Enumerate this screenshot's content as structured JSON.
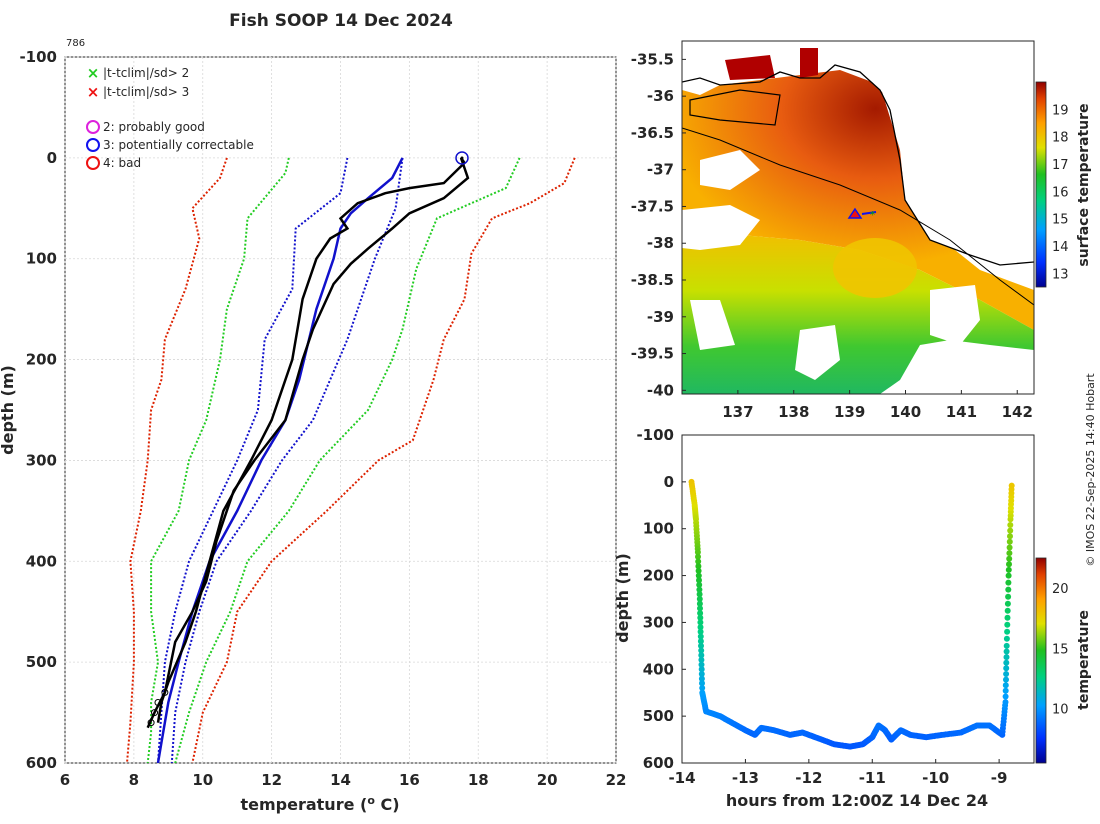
{
  "title": "Fish SOOP 14 Dec 2024",
  "profile_id": "786",
  "credit": "© IMOS 22-Sep-2025 14:40 Hobart",
  "chart_data": [
    {
      "type": "line",
      "name": "temperature-profile",
      "xlabel": "temperature (",
      "xlabel_sup": "o",
      "xlabel_tail": " C)",
      "ylabel": "depth (m)",
      "xlim": [
        6,
        22
      ],
      "ylim": [
        -100,
        600
      ],
      "xticks": [
        6,
        8,
        10,
        12,
        14,
        16,
        18,
        20,
        22
      ],
      "yticks": [
        -100,
        0,
        100,
        200,
        300,
        400,
        500,
        600
      ],
      "grid": true,
      "legend": [
        {
          "label": "|t-tclim|/sd> 2",
          "marker": "x",
          "color": "#22cc22"
        },
        {
          "label": "|t-tclim|/sd> 3",
          "marker": "x",
          "color": "#ee1111"
        },
        {
          "label": "2: probably good",
          "marker": "o",
          "color": "#dd22dd"
        },
        {
          "label": "3: potentially correctable",
          "marker": "o",
          "color": "#1111ee"
        },
        {
          "label": "4: bad",
          "marker": "o",
          "color": "#ee1111"
        }
      ],
      "series": [
        {
          "name": "clim-3sd-low",
          "color": "#dd2200",
          "dash": true,
          "points": [
            [
              10.7,
              0
            ],
            [
              10.5,
              20
            ],
            [
              9.7,
              50
            ],
            [
              9.9,
              80
            ],
            [
              9.5,
              130
            ],
            [
              8.9,
              180
            ],
            [
              8.8,
              220
            ],
            [
              8.5,
              250
            ],
            [
              8.4,
              300
            ],
            [
              8.2,
              350
            ],
            [
              7.9,
              400
            ],
            [
              8.0,
              450
            ],
            [
              8.0,
              500
            ],
            [
              7.9,
              560
            ],
            [
              7.8,
              600
            ]
          ]
        },
        {
          "name": "clim-2sd-low",
          "color": "#22cc22",
          "dash": true,
          "points": [
            [
              12.5,
              0
            ],
            [
              12.4,
              15
            ],
            [
              11.3,
              60
            ],
            [
              11.2,
              100
            ],
            [
              10.7,
              150
            ],
            [
              10.5,
              200
            ],
            [
              10.1,
              260
            ],
            [
              9.6,
              300
            ],
            [
              9.3,
              350
            ],
            [
              8.5,
              400
            ],
            [
              8.5,
              450
            ],
            [
              8.7,
              500
            ],
            [
              8.5,
              540
            ],
            [
              8.5,
              570
            ],
            [
              8.4,
              600
            ]
          ]
        },
        {
          "name": "clim-mean-low",
          "color": "#1111cc",
          "dash": true,
          "points": [
            [
              14.2,
              0
            ],
            [
              14.0,
              35
            ],
            [
              12.7,
              70
            ],
            [
              12.6,
              130
            ],
            [
              11.8,
              180
            ],
            [
              11.6,
              250
            ],
            [
              11.0,
              300
            ],
            [
              10.3,
              350
            ],
            [
              9.6,
              400
            ],
            [
              9.2,
              450
            ],
            [
              8.9,
              500
            ],
            [
              8.8,
              550
            ],
            [
              8.7,
              600
            ]
          ]
        },
        {
          "name": "clim-mean-high",
          "color": "#1111cc",
          "dash": true,
          "points": [
            [
              15.8,
              0
            ],
            [
              15.6,
              50
            ],
            [
              15.0,
              100
            ],
            [
              14.2,
              180
            ],
            [
              13.2,
              260
            ],
            [
              12.3,
              300
            ],
            [
              11.4,
              350
            ],
            [
              10.4,
              400
            ],
            [
              9.9,
              450
            ],
            [
              9.5,
              500
            ],
            [
              9.2,
              550
            ],
            [
              9.1,
              600
            ]
          ]
        },
        {
          "name": "clim-2sd-high",
          "color": "#22cc22",
          "dash": true,
          "points": [
            [
              19.2,
              0
            ],
            [
              18.8,
              30
            ],
            [
              17.8,
              45
            ],
            [
              16.8,
              60
            ],
            [
              16.2,
              110
            ],
            [
              15.8,
              170
            ],
            [
              15.5,
              200
            ],
            [
              14.8,
              250
            ],
            [
              13.4,
              300
            ],
            [
              12.5,
              350
            ],
            [
              11.3,
              400
            ],
            [
              10.8,
              450
            ],
            [
              10.1,
              500
            ],
            [
              9.6,
              550
            ],
            [
              9.2,
              600
            ]
          ]
        },
        {
          "name": "clim-3sd-high",
          "color": "#dd2200",
          "dash": true,
          "points": [
            [
              20.8,
              0
            ],
            [
              20.5,
              25
            ],
            [
              19.5,
              45
            ],
            [
              18.4,
              60
            ],
            [
              17.8,
              95
            ],
            [
              17.6,
              140
            ],
            [
              17.0,
              180
            ],
            [
              16.7,
              220
            ],
            [
              16.1,
              280
            ],
            [
              15.1,
              300
            ],
            [
              13.6,
              350
            ],
            [
              12.0,
              400
            ],
            [
              11.0,
              450
            ],
            [
              10.7,
              500
            ],
            [
              10.0,
              550
            ],
            [
              9.7,
              600
            ]
          ]
        },
        {
          "name": "model-mean",
          "color": "#1111cc",
          "dash": false,
          "points": [
            [
              15.8,
              0
            ],
            [
              15.5,
              20
            ],
            [
              14.8,
              40
            ],
            [
              14.3,
              55
            ],
            [
              14.0,
              70
            ],
            [
              13.8,
              100
            ],
            [
              13.3,
              150
            ],
            [
              12.8,
              220
            ],
            [
              12.4,
              260
            ],
            [
              11.7,
              300
            ],
            [
              11.0,
              350
            ],
            [
              10.2,
              400
            ],
            [
              9.7,
              450
            ],
            [
              9.3,
              500
            ],
            [
              9.0,
              540
            ],
            [
              8.8,
              580
            ],
            [
              8.7,
              600
            ]
          ]
        },
        {
          "name": "xbt-profile-a",
          "color": "#000000",
          "dash": false,
          "points": [
            [
              17.5,
              0
            ],
            [
              17.6,
              5
            ],
            [
              17.0,
              25
            ],
            [
              16.0,
              30
            ],
            [
              15.3,
              35
            ],
            [
              14.5,
              45
            ],
            [
              14.0,
              60
            ],
            [
              14.2,
              70
            ],
            [
              13.7,
              80
            ],
            [
              13.3,
              100
            ],
            [
              12.9,
              140
            ],
            [
              12.8,
              160
            ],
            [
              12.6,
              200
            ],
            [
              12.0,
              260
            ],
            [
              11.4,
              300
            ],
            [
              10.6,
              350
            ],
            [
              10.2,
              400
            ],
            [
              9.8,
              450
            ],
            [
              9.5,
              480
            ],
            [
              9.0,
              520
            ],
            [
              8.8,
              540
            ],
            [
              8.7,
              560
            ]
          ]
        },
        {
          "name": "xbt-profile-b",
          "color": "#000000",
          "dash": false,
          "points": [
            [
              17.5,
              0
            ],
            [
              17.7,
              20
            ],
            [
              17.0,
              40
            ],
            [
              16.0,
              55
            ],
            [
              15.5,
              70
            ],
            [
              14.8,
              90
            ],
            [
              14.3,
              105
            ],
            [
              13.8,
              125
            ],
            [
              13.2,
              170
            ],
            [
              12.9,
              200
            ],
            [
              12.4,
              260
            ],
            [
              11.5,
              300
            ],
            [
              10.9,
              330
            ],
            [
              10.4,
              380
            ],
            [
              10.1,
              420
            ],
            [
              9.7,
              450
            ],
            [
              9.2,
              480
            ],
            [
              8.9,
              530
            ],
            [
              8.6,
              550
            ],
            [
              8.4,
              565
            ]
          ]
        }
      ]
    },
    {
      "type": "heatmap",
      "name": "sst-map",
      "colorbar_label": "surface temperature",
      "xlim": [
        136,
        142.3
      ],
      "ylim": [
        -40.05,
        -35.25
      ],
      "xticks": [
        137,
        138,
        139,
        140,
        141,
        142
      ],
      "yticks": [
        -35.5,
        -36,
        -36.5,
        -37,
        -37.5,
        -38,
        -38.5,
        -39,
        -39.5,
        -40
      ],
      "ytick_labels": [
        "-35.5",
        "-36",
        "-36.5",
        "-37",
        "-37.5",
        "-38",
        "-38.5",
        "-39",
        "-39.5",
        "-40"
      ],
      "colorbar_range": [
        12.5,
        20
      ],
      "colorbar_ticks": [
        13,
        14,
        15,
        16,
        17,
        18,
        19
      ],
      "marker_position": [
        139.1,
        -37.55
      ]
    },
    {
      "type": "scatter",
      "name": "depth-time",
      "xlabel": "hours from 12:00Z 14 Dec 24",
      "ylabel": "depth (m)",
      "colorbar_label": "temperature",
      "xlim": [
        -14,
        -8.45
      ],
      "ylim": [
        -100,
        600
      ],
      "xticks": [
        -14,
        -13,
        -12,
        -11,
        -10,
        -9
      ],
      "yticks": [
        -100,
        0,
        100,
        200,
        300,
        400,
        500,
        600
      ],
      "colorbar_range": [
        5.5,
        22.5
      ],
      "colorbar_ticks": [
        10,
        15,
        20
      ],
      "points": [
        [
          -13.85,
          0
        ],
        [
          -13.8,
          50
        ],
        [
          -13.78,
          80
        ],
        [
          -13.75,
          150
        ],
        [
          -13.72,
          250
        ],
        [
          -13.7,
          350
        ],
        [
          -13.68,
          450
        ],
        [
          -13.62,
          490
        ],
        [
          -13.4,
          500
        ],
        [
          -13.2,
          515
        ],
        [
          -13.0,
          530
        ],
        [
          -12.85,
          540
        ],
        [
          -12.75,
          525
        ],
        [
          -12.55,
          530
        ],
        [
          -12.3,
          540
        ],
        [
          -12.1,
          535
        ],
        [
          -11.9,
          545
        ],
        [
          -11.6,
          560
        ],
        [
          -11.35,
          565
        ],
        [
          -11.15,
          560
        ],
        [
          -11.0,
          545
        ],
        [
          -10.9,
          520
        ],
        [
          -10.8,
          530
        ],
        [
          -10.7,
          550
        ],
        [
          -10.55,
          530
        ],
        [
          -10.4,
          540
        ],
        [
          -10.15,
          545
        ],
        [
          -9.9,
          540
        ],
        [
          -9.6,
          535
        ],
        [
          -9.35,
          520
        ],
        [
          -9.15,
          520
        ],
        [
          -8.95,
          540
        ],
        [
          -8.9,
          470
        ],
        [
          -8.88,
          350
        ],
        [
          -8.85,
          200
        ],
        [
          -8.82,
          80
        ],
        [
          -8.8,
          0
        ]
      ]
    }
  ]
}
